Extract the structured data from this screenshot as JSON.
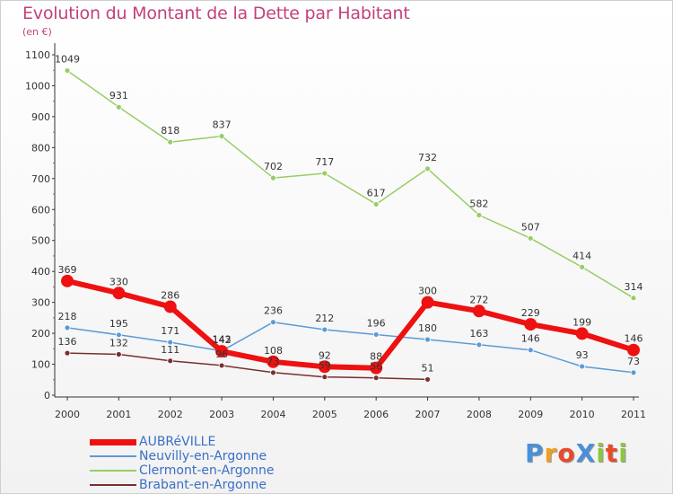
{
  "header": {
    "title": "Evolution du Montant de la Dette par Habitant",
    "unit": "(en €)"
  },
  "logo": {
    "text": "ProXiti",
    "letter_colors": [
      "#4a90d9",
      "#f0a020",
      "#e84a2a",
      "#4a90d9",
      "#8cc63f",
      "#e84a2a",
      "#8cc63f"
    ]
  },
  "chart_data": {
    "type": "line",
    "title": "Evolution du Montant de la Dette par Habitant",
    "ylabel": "(en €)",
    "xlabel": "",
    "x": [
      "2000",
      "2001",
      "2002",
      "2003",
      "2004",
      "2005",
      "2006",
      "2007",
      "2008",
      "2009",
      "2010",
      "2011"
    ],
    "ylim": [
      0,
      1100
    ],
    "yticks": [
      "0",
      "100",
      "200",
      "300",
      "400",
      "500",
      "600",
      "700",
      "800",
      "900",
      "1000",
      "1100"
    ],
    "grid": false,
    "legend_position": "bottom-left",
    "series": [
      {
        "name": "AUBRéVILLE",
        "color": "#ee1111",
        "emphasis": "thick",
        "values": [
          369,
          330,
          286,
          142,
          108,
          92,
          88,
          300,
          272,
          229,
          199,
          146
        ],
        "labels": [
          "369",
          "330",
          "286",
          "142",
          "108",
          "92",
          "88",
          "300",
          "272",
          "229",
          "199",
          "146"
        ]
      },
      {
        "name": "Neuvilly-en-Argonne",
        "color": "#5b9bd5",
        "emphasis": "thin",
        "values": [
          218,
          195,
          171,
          143,
          236,
          212,
          196,
          180,
          163,
          146,
          93,
          73
        ],
        "labels": [
          "218",
          "195",
          "171",
          "143",
          "236",
          "212",
          "196",
          "180",
          "163",
          "146",
          "93",
          "73"
        ]
      },
      {
        "name": "Clermont-en-Argonne",
        "color": "#99cc66",
        "emphasis": "thin",
        "values": [
          1049,
          931,
          818,
          837,
          702,
          717,
          617,
          732,
          582,
          507,
          414,
          314
        ],
        "labels": [
          "1049",
          "931",
          "818",
          "837",
          "702",
          "717",
          "617",
          "732",
          "582",
          "507",
          "414",
          "314"
        ]
      },
      {
        "name": "Brabant-en-Argonne",
        "color": "#7a2e2e",
        "emphasis": "thin",
        "values": [
          136,
          132,
          111,
          96,
          73,
          59,
          56,
          51,
          null,
          null,
          null,
          null
        ],
        "labels": [
          "136",
          "132",
          "111",
          "96",
          "73",
          "59",
          "56",
          "51",
          "",
          "",
          "",
          ""
        ]
      }
    ]
  }
}
